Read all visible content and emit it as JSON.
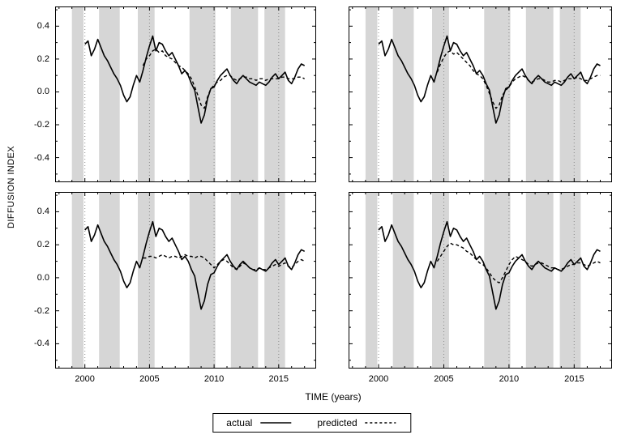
{
  "figure": {
    "ylabel": "DIFFUSION INDEX",
    "xlabel": "TIME (years)",
    "legend": {
      "actual_label": "actual",
      "predicted_label": "predicted"
    }
  },
  "chart_data": {
    "type": "line",
    "title": "",
    "xlabel": "TIME (years)",
    "ylabel": "DIFFUSION INDEX",
    "layout": "2x2 panels, shared axes; y tick labels on left column only, x tick labels on bottom row only; legend centered below",
    "grid": "dotted vertical gridlines at major x ticks",
    "xlim": [
      1997.7,
      2017.9
    ],
    "ylim": [
      -0.55,
      0.52
    ],
    "xticks": [
      2000,
      2005,
      2010,
      2015
    ],
    "xtick_labels": [
      "2000",
      "2005",
      "2010",
      "2015"
    ],
    "yticks": [
      -0.4,
      -0.2,
      0,
      0.2,
      0.4
    ],
    "ytick_labels": [
      "-0.4",
      "-0.2",
      "0.0",
      "0.2",
      "0.4"
    ],
    "shaded_bands_x": [
      [
        1999.0,
        1999.9
      ],
      [
        2001.1,
        2002.7
      ],
      [
        2004.1,
        2005.4
      ],
      [
        2008.1,
        2010.1
      ],
      [
        2011.3,
        2013.4
      ],
      [
        2013.9,
        2015.5
      ]
    ],
    "colors": {
      "line": "#000000",
      "band": "#d6d6d6",
      "grid": "#8a8a8a",
      "background": "#ffffff"
    },
    "series_legend": [
      "actual",
      "predicted"
    ],
    "x_start": 2000.0,
    "x_step": 0.25,
    "actual": [
      0.29,
      0.31,
      0.22,
      0.26,
      0.32,
      0.27,
      0.22,
      0.19,
      0.15,
      0.11,
      0.08,
      0.04,
      -0.02,
      -0.06,
      -0.03,
      0.04,
      0.1,
      0.06,
      0.13,
      0.21,
      0.28,
      0.34,
      0.25,
      0.3,
      0.29,
      0.25,
      0.22,
      0.24,
      0.2,
      0.16,
      0.11,
      0.13,
      0.1,
      0.05,
      0.01,
      -0.09,
      -0.19,
      -0.14,
      -0.04,
      0.02,
      0.03,
      0.07,
      0.1,
      0.12,
      0.14,
      0.1,
      0.07,
      0.05,
      0.08,
      0.1,
      0.08,
      0.06,
      0.05,
      0.04,
      0.06,
      0.05,
      0.04,
      0.06,
      0.09,
      0.11,
      0.08,
      0.1,
      0.12,
      0.07,
      0.05,
      0.09,
      0.14,
      0.17,
      0.16
    ],
    "pred_x_start": 2004.5,
    "pred_x_step": 0.25,
    "panels": [
      {
        "position": "top-left",
        "predicted": [
          0.16,
          0.2,
          0.22,
          0.25,
          0.26,
          0.24,
          0.25,
          0.22,
          0.21,
          0.2,
          0.18,
          0.16,
          0.15,
          0.13,
          0.11,
          0.08,
          0.03,
          -0.02,
          -0.08,
          -0.1,
          -0.03,
          0.02,
          0.04,
          0.06,
          0.07,
          0.09,
          0.1,
          0.1,
          0.08,
          0.07,
          0.08,
          0.09,
          0.09,
          0.08,
          0.08,
          0.07,
          0.08,
          0.08,
          0.07,
          0.08,
          0.08,
          0.08,
          0.08,
          0.09,
          0.09,
          0.08,
          0.08,
          0.08,
          0.09,
          0.09,
          0.08
        ]
      },
      {
        "position": "top-right",
        "predicted": [
          0.12,
          0.17,
          0.21,
          0.24,
          0.25,
          0.23,
          0.24,
          0.22,
          0.2,
          0.18,
          0.16,
          0.13,
          0.11,
          0.1,
          0.08,
          0.04,
          -0.01,
          -0.06,
          -0.1,
          -0.08,
          -0.02,
          0.01,
          0.03,
          0.06,
          0.08,
          0.09,
          0.1,
          0.09,
          0.07,
          0.06,
          0.07,
          0.08,
          0.08,
          0.07,
          0.06,
          0.06,
          0.07,
          0.07,
          0.06,
          0.07,
          0.08,
          0.08,
          0.08,
          0.09,
          0.08,
          0.07,
          0.07,
          0.08,
          0.09,
          0.1,
          0.1
        ]
      },
      {
        "position": "bottom-left",
        "predicted": [
          0.12,
          0.12,
          0.13,
          0.13,
          0.12,
          0.13,
          0.14,
          0.13,
          0.12,
          0.13,
          0.13,
          0.12,
          0.13,
          0.14,
          0.13,
          0.13,
          0.12,
          0.13,
          0.13,
          0.12,
          0.1,
          0.08,
          0.06,
          0.08,
          0.1,
          0.11,
          0.1,
          0.08,
          0.06,
          0.05,
          0.07,
          0.09,
          0.08,
          0.06,
          0.05,
          0.05,
          0.06,
          0.05,
          0.05,
          0.06,
          0.07,
          0.08,
          0.07,
          0.08,
          0.09,
          0.07,
          0.06,
          0.08,
          0.1,
          0.11,
          0.1
        ]
      },
      {
        "position": "bottom-right",
        "predicted": [
          0.1,
          0.13,
          0.16,
          0.19,
          0.21,
          0.2,
          0.2,
          0.19,
          0.18,
          0.16,
          0.15,
          0.13,
          0.11,
          0.09,
          0.08,
          0.06,
          0.03,
          0.0,
          -0.02,
          -0.03,
          0.0,
          0.04,
          0.08,
          0.11,
          0.13,
          0.12,
          0.11,
          0.1,
          0.08,
          0.07,
          0.08,
          0.09,
          0.09,
          0.08,
          0.07,
          0.06,
          0.06,
          0.05,
          0.05,
          0.06,
          0.07,
          0.08,
          0.08,
          0.09,
          0.09,
          0.08,
          0.07,
          0.08,
          0.09,
          0.1,
          0.09
        ]
      }
    ]
  }
}
